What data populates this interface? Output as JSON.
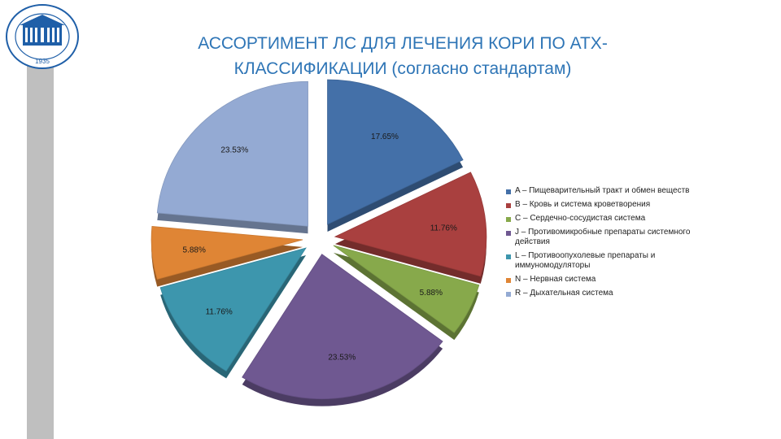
{
  "slide": {
    "title_line1": "АССОРТИМЕНТ ЛС ДЛЯ ЛЕЧЕНИЯ КОРИ ПО АТХ-",
    "title_line2": "КЛАССИФИКАЦИИ (согласно стандартам)",
    "logo": {
      "year": "1935"
    }
  },
  "chart_data": {
    "type": "pie",
    "exploded": true,
    "style": "3d",
    "legend_position": "right",
    "series": [
      {
        "name": "A – Пищеварительный тракт и обмен веществ",
        "value": 17.65,
        "label": "17.65%",
        "color": "#4470a8"
      },
      {
        "name": "B – Кровь и система кроветворения",
        "value": 11.76,
        "label": "11.76%",
        "color": "#a9403f"
      },
      {
        "name": "C – Сердечно-сосудистая система",
        "value": 5.88,
        "label": "5.88%",
        "color": "#87a94b"
      },
      {
        "name": "J – Противомикробные препараты системного действия",
        "value": 23.53,
        "label": "23.53%",
        "color": "#6f5891"
      },
      {
        "name": "L – Противоопухолевые препараты и иммуномодуляторы",
        "value": 11.76,
        "label": "11.76%",
        "color": "#3d96ad"
      },
      {
        "name": "N – Нервная система",
        "value": 5.88,
        "label": "5.88%",
        "color": "#df8535"
      },
      {
        "name": "R – Дыхательная система",
        "value": 23.53,
        "label": "23.53%",
        "color": "#94aad3"
      }
    ]
  }
}
